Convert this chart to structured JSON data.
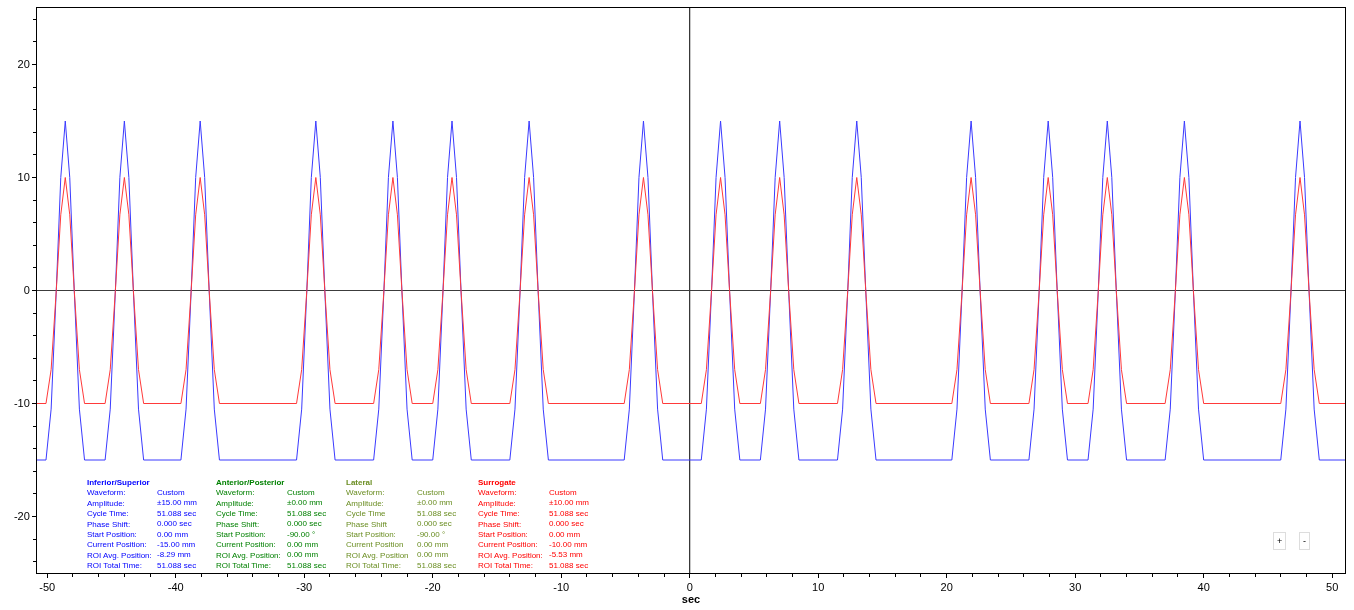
{
  "chart_data": {
    "type": "line",
    "xlabel": "sec",
    "x": [
      -50.8,
      -50.1,
      -49.7,
      -49.3,
      -48.95,
      -48.6,
      -48.25,
      -47.9,
      -47.5,
      -47.1,
      -45.5,
      -45.1,
      -44.7,
      -44.35,
      -44.0,
      -43.65,
      -43.3,
      -42.9,
      -42.5,
      -39.6,
      -39.2,
      -38.8,
      -38.45,
      -38.1,
      -37.75,
      -37.4,
      -37.0,
      -36.6,
      -30.6,
      -30.2,
      -29.8,
      -29.45,
      -29.1,
      -28.75,
      -28.4,
      -28.0,
      -27.6,
      -24.6,
      -24.2,
      -23.8,
      -23.45,
      -23.1,
      -22.75,
      -22.4,
      -22.0,
      -21.6,
      -20.0,
      -19.6,
      -19.2,
      -18.85,
      -18.5,
      -18.15,
      -17.8,
      -17.4,
      -17.0,
      -14.0,
      -13.6,
      -13.2,
      -12.85,
      -12.5,
      -12.15,
      -11.8,
      -11.4,
      -11.0,
      -5.1,
      -4.7,
      -4.3,
      -3.95,
      -3.6,
      -3.25,
      -2.9,
      -2.5,
      -2.1,
      0.9,
      1.3,
      1.7,
      2.05,
      2.4,
      2.75,
      3.1,
      3.5,
      3.9,
      5.5,
      5.9,
      6.3,
      6.65,
      7.0,
      7.35,
      7.7,
      8.1,
      8.5,
      11.5,
      11.9,
      12.3,
      12.65,
      13.0,
      13.35,
      13.7,
      14.1,
      14.5,
      20.4,
      20.8,
      21.2,
      21.55,
      21.9,
      22.25,
      22.6,
      23.0,
      23.4,
      26.4,
      26.8,
      27.2,
      27.55,
      27.9,
      28.25,
      28.6,
      29.0,
      29.4,
      31.0,
      31.4,
      31.8,
      32.15,
      32.5,
      32.85,
      33.2,
      33.6,
      34.0,
      37.0,
      37.4,
      37.8,
      38.15,
      38.5,
      38.85,
      39.2,
      39.6,
      40.0,
      46.0,
      46.4,
      46.8,
      47.15,
      47.5,
      47.85,
      48.2,
      48.6,
      49.0,
      51.0
    ],
    "series": [
      {
        "color": "#3a3aff",
        "values": [
          -15,
          -15,
          -10.5,
          0,
          10,
          15,
          10,
          0,
          -10.5,
          -15,
          -15,
          -10.5,
          0,
          10,
          15,
          10,
          0,
          -10.5,
          -15,
          -15,
          -10.5,
          0,
          10,
          15,
          10,
          0,
          -10.5,
          -15,
          -15,
          -10.5,
          0,
          10,
          15,
          10,
          0,
          -10.5,
          -15,
          -15,
          -10.5,
          0,
          10,
          15,
          10,
          0,
          -10.5,
          -15,
          -15,
          -10.5,
          0,
          10,
          15,
          10,
          0,
          -10.5,
          -15,
          -15,
          -10.5,
          0,
          10,
          15,
          10,
          0,
          -10.5,
          -15,
          -15,
          -10.5,
          0,
          10,
          15,
          10,
          0,
          -10.5,
          -15,
          -15,
          -10.5,
          0,
          10,
          15,
          10,
          0,
          -10.5,
          -15,
          -15,
          -10.5,
          0,
          10,
          15,
          10,
          0,
          -10.5,
          -15,
          -15,
          -10.5,
          0,
          10,
          15,
          10,
          0,
          -10.5,
          -15,
          -15,
          -10.5,
          0,
          10,
          15,
          10,
          0,
          -10.5,
          -15,
          -15,
          -10.5,
          0,
          10,
          15,
          10,
          0,
          -10.5,
          -15,
          -15,
          -10.5,
          0,
          10,
          15,
          10,
          0,
          -10.5,
          -15,
          -15,
          -10.5,
          0,
          10,
          15,
          10,
          0,
          -10.5,
          -15,
          -15,
          -10.5,
          0,
          10,
          15,
          10,
          0,
          -10.5,
          -15,
          -15
        ]
      },
      {
        "color": "#ff3a3a",
        "values": [
          -10,
          -10,
          -7,
          0,
          6.7,
          10,
          6.7,
          0,
          -7,
          -10,
          -10,
          -7,
          0,
          6.7,
          10,
          6.7,
          0,
          -7,
          -10,
          -10,
          -7,
          0,
          6.7,
          10,
          6.7,
          0,
          -7,
          -10,
          -10,
          -7,
          0,
          6.7,
          10,
          6.7,
          0,
          -7,
          -10,
          -10,
          -7,
          0,
          6.7,
          10,
          6.7,
          0,
          -7,
          -10,
          -10,
          -7,
          0,
          6.7,
          10,
          6.7,
          0,
          -7,
          -10,
          -10,
          -7,
          0,
          6.7,
          10,
          6.7,
          0,
          -7,
          -10,
          -10,
          -7,
          0,
          6.7,
          10,
          6.7,
          0,
          -7,
          -10,
          -10,
          -7,
          0,
          6.7,
          10,
          6.7,
          0,
          -7,
          -10,
          -10,
          -7,
          0,
          6.7,
          10,
          6.7,
          0,
          -7,
          -10,
          -10,
          -7,
          0,
          6.7,
          10,
          6.7,
          0,
          -7,
          -10,
          -10,
          -7,
          0,
          6.7,
          10,
          6.7,
          0,
          -7,
          -10,
          -10,
          -7,
          0,
          6.7,
          10,
          6.7,
          0,
          -7,
          -10,
          -10,
          -7,
          0,
          6.7,
          10,
          6.7,
          0,
          -7,
          -10,
          -10,
          -7,
          0,
          6.7,
          10,
          6.7,
          0,
          -7,
          -10,
          -10,
          -7,
          0,
          6.7,
          10,
          6.7,
          0,
          -7,
          -10,
          -10
        ]
      }
    ],
    "xlim": [
      -50.8,
      51.0
    ],
    "ylim": [
      -25,
      25
    ],
    "xticks": [
      -50,
      -40,
      -30,
      -20,
      -10,
      0,
      10,
      20,
      30,
      40,
      50
    ],
    "yticks": [
      -20,
      -10,
      0,
      10,
      20
    ],
    "grid": false,
    "ref_lines": [
      {
        "axis": "x",
        "value": 0,
        "color": "#000000"
      },
      {
        "axis": "y",
        "value": 0,
        "color": "#3c3c3c"
      }
    ],
    "annotations": [
      "Inferior/Superior\nWaveform:\nAmplitude:\nCycle Time:\nPhase Shift:\nStart Position:\nCurrent Position:\nROI Avg. Position:\nROI Total Time:",
      "Custom\n±15.00 mm\n51.088 sec\n0.000 sec\n0.00 mm\n-15.00 mm\n-8.29 mm\n51.088 sec",
      "Anterior/Posterior\nWaveform:\nAmplitude:\nCycle Time:\nPhase Shift:\nStart Position:\nCurrent Position:\nROI Avg. Position:\nROI Total Time:",
      "Custom\n±0.00 mm\n51.088 sec\n0.000 sec\n-90.00 °\n0.00 mm\n0.00 mm\n51.088 sec",
      "Lateral\nWaveform:\nAmplitude:\nCycle Time\nPhase Shift\nStart Position:\nCurrent Position\nROI Avg. Position\nROI Total Time:",
      "Custom\n±0.00 mm\n51.088 sec\n0.000 sec\n-90.00 °\n0.00 mm\n0.00 mm\n51.088 sec",
      "Surrogate\nWaveform:\nAmplitude:\nCycle Time:\nPhase Shift:\nStart Position:\nCurrent Position:\nROI Avg. Position:\nROI Total Time:",
      "Custom\n±10.00 mm\n51.088 sec\n0.000 sec\n0.00 mm\n-10.00 mm\n-5.53 mm\n51.088 sec",
      "+",
      "-"
    ]
  }
}
